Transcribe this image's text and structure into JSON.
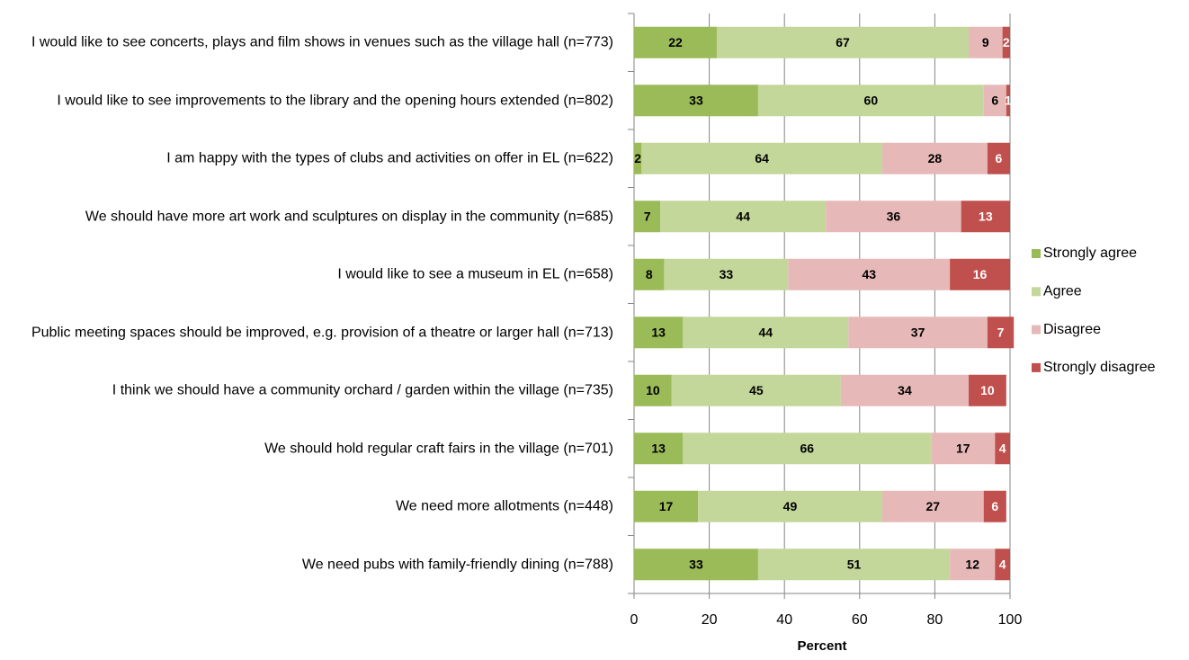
{
  "chart_data": {
    "type": "stacked-barh",
    "categories": [
      "I would like to see concerts, plays and film shows in venues such as the village hall (n=773)",
      "I would like to see improvements to the library and the opening hours extended (n=802)",
      "I am happy with the types of clubs and activities on offer in EL (n=622)",
      "We should have more art work and sculptures on display in the community (n=685)",
      "I would like to see a museum in EL (n=658)",
      "Public meeting spaces should be improved, e.g. provision of a theatre or larger hall (n=713)",
      "I think we should have a community orchard / garden within the village (n=735)",
      "We should hold regular craft fairs in the village (n=701)",
      "We need more allotments (n=448)",
      "We need pubs with family-friendly dining (n=788)"
    ],
    "series": [
      {
        "name": "Strongly agree",
        "color": "#9bbb59",
        "values": [
          22,
          33,
          2,
          7,
          8,
          13,
          10,
          13,
          17,
          33
        ]
      },
      {
        "name": "Agree",
        "color": "#c4d79b",
        "values": [
          67,
          60,
          64,
          44,
          33,
          44,
          45,
          66,
          49,
          51
        ]
      },
      {
        "name": "Disagree",
        "color": "#e6b9b8",
        "values": [
          9,
          6,
          28,
          36,
          43,
          37,
          34,
          17,
          27,
          12
        ]
      },
      {
        "name": "Strongly disagree",
        "color": "#c0504d",
        "values": [
          2,
          1,
          6,
          13,
          16,
          7,
          10,
          4,
          6,
          4
        ]
      }
    ],
    "xlabel": "Percent",
    "xlim": [
      0,
      100
    ],
    "xticks": [
      0,
      20,
      40,
      60,
      80,
      100
    ],
    "grid": true,
    "legend": "right"
  }
}
